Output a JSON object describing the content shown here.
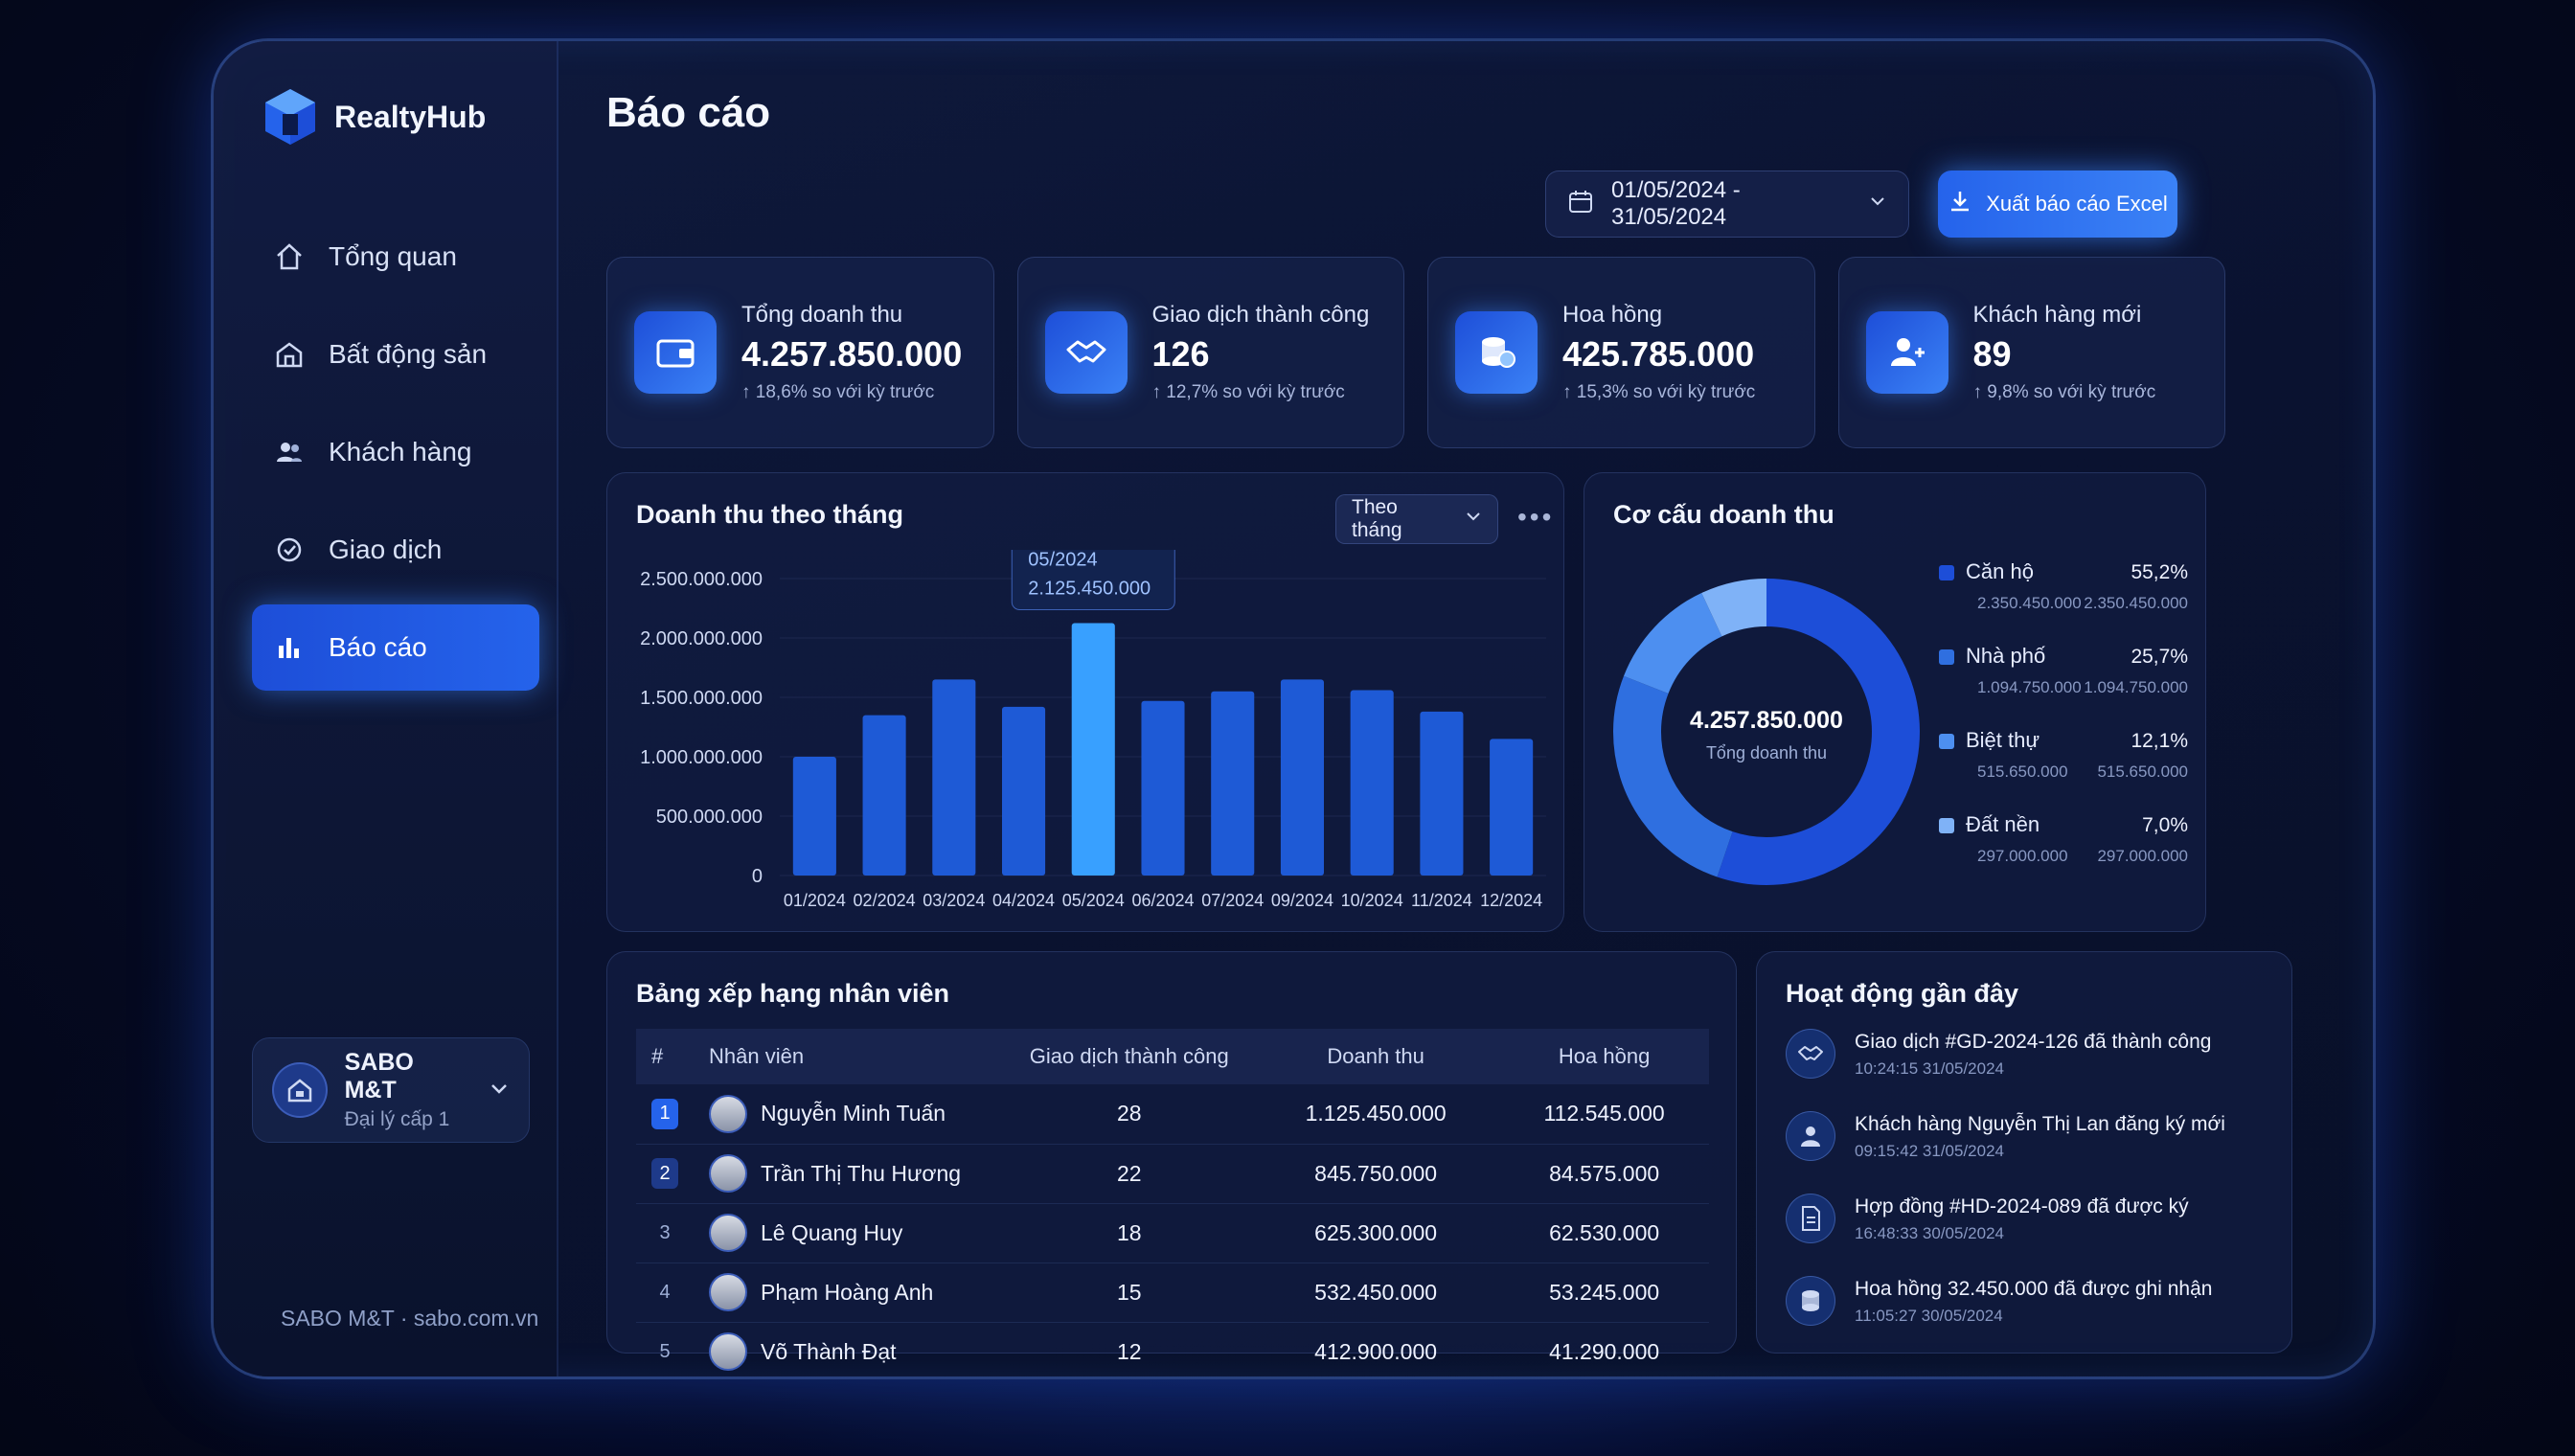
{
  "app": {
    "brand": "RealtyHub",
    "footer": "SABO M&T · sabo.com.vn"
  },
  "sidebar": {
    "items": [
      {
        "label": "Tổng quan",
        "icon": "home-icon"
      },
      {
        "label": "Bất động sản",
        "icon": "building-icon"
      },
      {
        "label": "Khách hàng",
        "icon": "users-icon"
      },
      {
        "label": "Giao dịch",
        "icon": "transaction-icon"
      },
      {
        "label": "Báo cáo",
        "icon": "bar-chart-icon",
        "active": true
      }
    ]
  },
  "account": {
    "name": "SABO M&T",
    "role": "Đại lý cấp 1"
  },
  "header": {
    "title": "Báo cáo",
    "date_range": "01/05/2024 - 31/05/2024",
    "export_label": "Xuất báo cáo Excel"
  },
  "kpis": [
    {
      "label": "Tổng doanh thu",
      "value": "4.257.850.000",
      "delta": "↑ 18,6% so với kỳ trước",
      "icon": "wallet-icon"
    },
    {
      "label": "Giao dịch thành công",
      "value": "126",
      "delta": "↑ 12,7% so với kỳ trước",
      "icon": "handshake-icon"
    },
    {
      "label": "Hoa hồng",
      "value": "425.785.000",
      "delta": "↑ 15,3% so với kỳ trước",
      "icon": "coins-icon"
    },
    {
      "label": "Khách hàng mới",
      "value": "89",
      "delta": "↑ 9,8% so với kỳ trước",
      "icon": "user-plus-icon"
    }
  ],
  "revenue_panel": {
    "title": "Doanh thu theo tháng",
    "period_select": "Theo tháng",
    "tooltip": {
      "label": "05/2024",
      "value": "2.125.450.000"
    }
  },
  "chart_data": {
    "type": "bar",
    "categories": [
      "01/2024",
      "02/2024",
      "03/2024",
      "04/2024",
      "05/2024",
      "06/2024",
      "07/2024",
      "09/2024",
      "10/2024",
      "11/2024",
      "12/2024"
    ],
    "values": [
      1000000000,
      1350000000,
      1650000000,
      1420000000,
      2125450000,
      1470000000,
      1550000000,
      1650000000,
      1560000000,
      1380000000,
      1150000000
    ],
    "yticks": [
      "2.500.000.000",
      "2.000.000.000",
      "1.500.000.000",
      "1.000.000.000",
      "500.000.000",
      "0"
    ],
    "ylim": [
      0,
      2500000000
    ],
    "highlight_index": 4,
    "bar_color": "#1e5ad6",
    "highlight_color": "#38a0ff"
  },
  "structure_panel": {
    "title": "Cơ cấu doanh thu",
    "center_value": "4.257.850.000",
    "center_label": "Tổng doanh thu",
    "segments": [
      {
        "name": "Căn hộ",
        "value": "2.350.450.000",
        "value_repeat": "2.350.450.000",
        "pct": "55,2%",
        "share": 55.2,
        "color": "#1d4ed8"
      },
      {
        "name": "Nhà phố",
        "value": "1.094.750.000",
        "value_repeat": "1.094.750.000",
        "pct": "25,7%",
        "share": 25.7,
        "color": "#2f6fe0"
      },
      {
        "name": "Biệt thự",
        "value": "515.650.000",
        "value_repeat": "515.650.000",
        "pct": "12,1%",
        "share": 12.1,
        "color": "#4d8ff0"
      },
      {
        "name": "Đất nền",
        "value": "297.000.000",
        "value_repeat": "297.000.000",
        "pct": "7,0%",
        "share": 7.0,
        "color": "#7fb2f7"
      }
    ]
  },
  "ranking": {
    "title": "Bảng xếp hạng nhân viên",
    "columns": [
      "#",
      "Nhân viên",
      "Giao dịch thành công",
      "Doanh thu",
      "Hoa hồng"
    ],
    "rows": [
      {
        "rank": "1",
        "name": "Nguyễn Minh Tuấn",
        "deals": "28",
        "revenue": "1.125.450.000",
        "commission": "112.545.000"
      },
      {
        "rank": "2",
        "name": "Trần Thị Thu Hương",
        "deals": "22",
        "revenue": "845.750.000",
        "commission": "84.575.000"
      },
      {
        "rank": "3",
        "name": "Lê Quang Huy",
        "deals": "18",
        "revenue": "625.300.000",
        "commission": "62.530.000"
      },
      {
        "rank": "4",
        "name": "Phạm Hoàng Anh",
        "deals": "15",
        "revenue": "532.450.000",
        "commission": "53.245.000"
      },
      {
        "rank": "5",
        "name": "Võ Thành Đạt",
        "deals": "12",
        "revenue": "412.900.000",
        "commission": "41.290.000"
      }
    ]
  },
  "activity": {
    "title": "Hoạt động gần đây",
    "items": [
      {
        "text": "Giao dịch #GD-2024-126 đã thành công",
        "time": "10:24:15 31/05/2024",
        "icon": "handshake-icon"
      },
      {
        "text": "Khách hàng Nguyễn Thị Lan đăng ký mới",
        "time": "09:15:42 31/05/2024",
        "icon": "user-icon"
      },
      {
        "text": "Hợp đồng #HD-2024-089 đã được ký",
        "time": "16:48:33 30/05/2024",
        "icon": "document-icon"
      },
      {
        "text": "Hoa hồng 32.450.000 đã được ghi nhận",
        "time": "11:05:27 30/05/2024",
        "icon": "coins-icon"
      }
    ]
  }
}
